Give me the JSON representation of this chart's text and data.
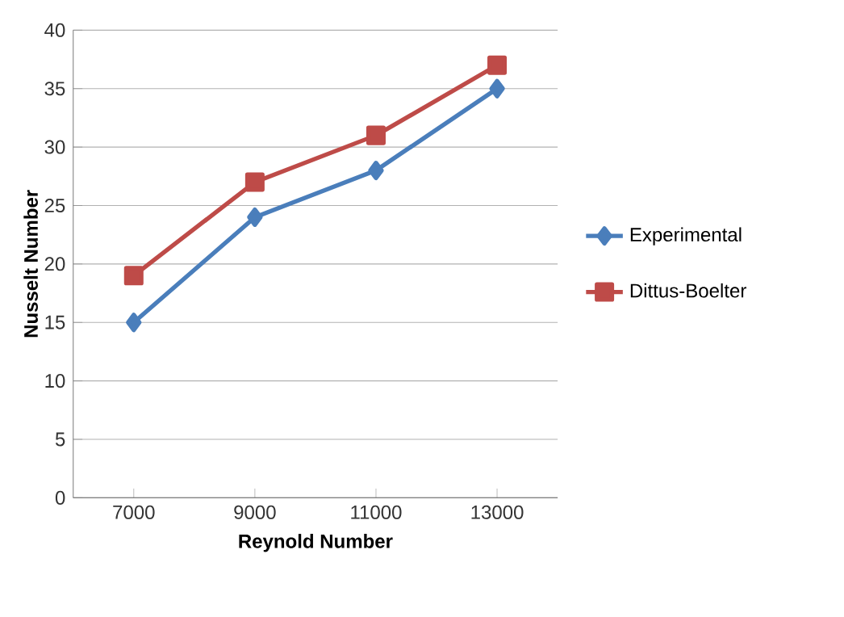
{
  "chart_data": {
    "type": "line",
    "xlabel": "Reynold Number",
    "ylabel": "Nusselt Number",
    "categories": [
      "7000",
      "9000",
      "11000",
      "13000"
    ],
    "series": [
      {
        "name": "Experimental",
        "color": "#4a7ebb",
        "marker": "diamond",
        "values": [
          15,
          24,
          28,
          35
        ]
      },
      {
        "name": "Dittus-Boelter",
        "color": "#be4b48",
        "marker": "square",
        "values": [
          19,
          27,
          31,
          37
        ]
      }
    ],
    "ylim": [
      0,
      40
    ],
    "yticks": [
      0,
      5,
      10,
      15,
      20,
      25,
      30,
      35,
      40
    ],
    "grid": "y",
    "legend": "right",
    "line_style": "solid"
  }
}
